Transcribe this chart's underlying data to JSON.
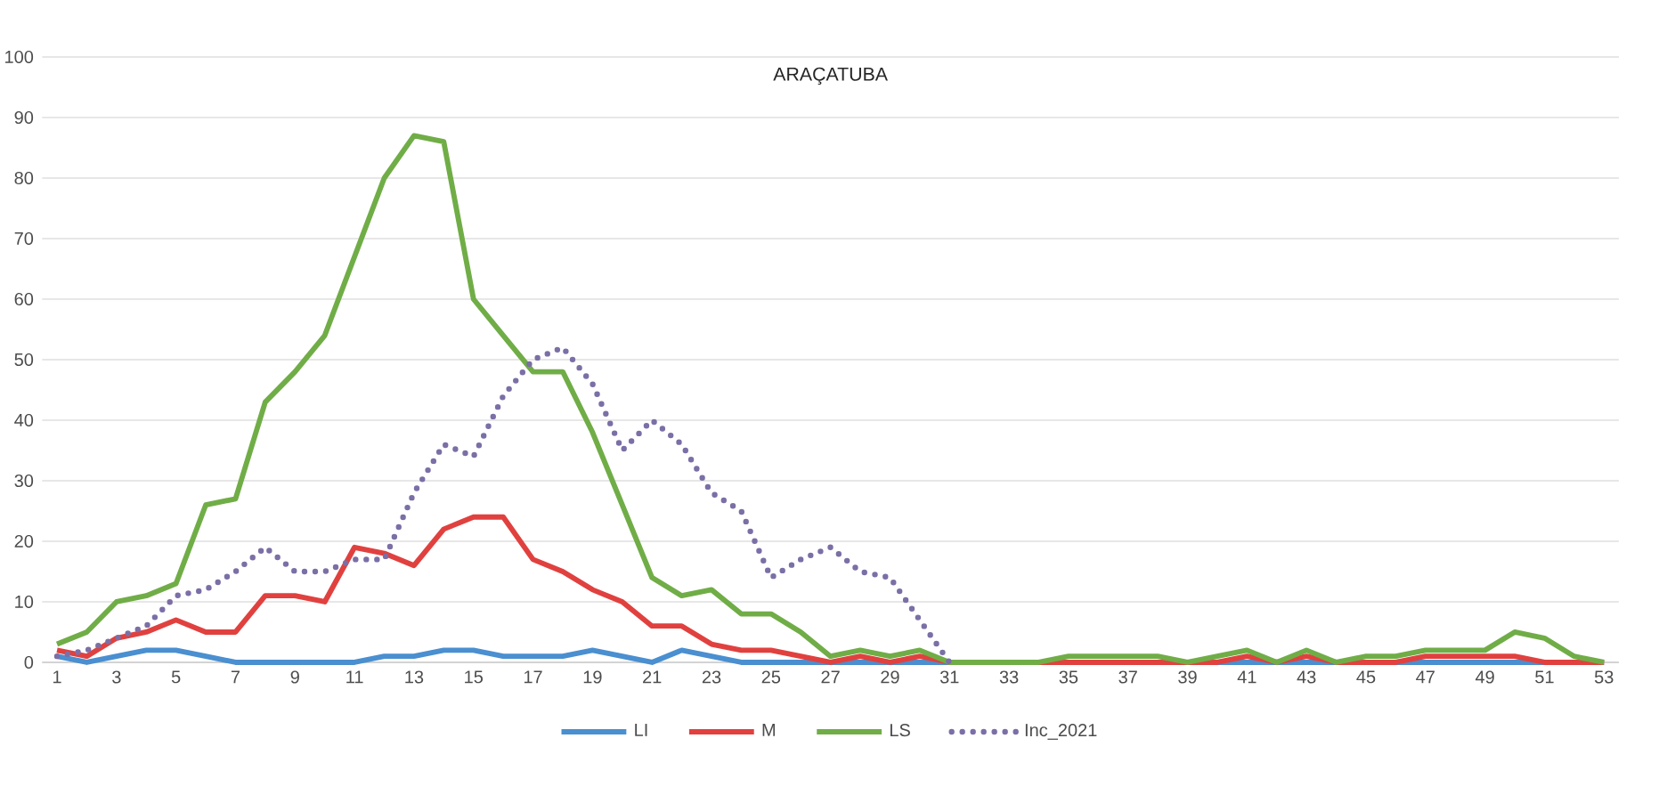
{
  "chart_data": {
    "type": "line",
    "title": "ARAÇATUBA",
    "categories": [
      "1",
      null,
      "3",
      null,
      "5",
      null,
      "7",
      null,
      "9",
      null,
      "11",
      null,
      "13",
      null,
      "15",
      null,
      "17",
      null,
      "19",
      null,
      "21",
      null,
      "23",
      null,
      "25",
      null,
      "27",
      null,
      "29",
      null,
      "31",
      null,
      "33",
      null,
      "35",
      null,
      "37",
      null,
      "39",
      null,
      "41",
      null,
      "43",
      null,
      "45",
      null,
      "47",
      null,
      "49",
      null,
      "51",
      null,
      "53"
    ],
    "series": [
      {
        "name": "LI",
        "color": "#4a8fd0",
        "line_style": "solid",
        "values": [
          1,
          0,
          1,
          2,
          2,
          1,
          0,
          0,
          0,
          0,
          0,
          1,
          1,
          2,
          2,
          1,
          1,
          1,
          2,
          1,
          0,
          2,
          1,
          0,
          0,
          0,
          0,
          0,
          0,
          0,
          0,
          0,
          0,
          0,
          0,
          0,
          0,
          0,
          0,
          0,
          0,
          0,
          0,
          0,
          0,
          0,
          0,
          0,
          0,
          0,
          0,
          0,
          0
        ]
      },
      {
        "name": "M",
        "color": "#e0413f",
        "line_style": "solid",
        "values": [
          2,
          1,
          4,
          5,
          7,
          5,
          5,
          11,
          11,
          10,
          19,
          18,
          16,
          22,
          24,
          24,
          17,
          15,
          12,
          10,
          6,
          6,
          3,
          2,
          2,
          1,
          0,
          1,
          0,
          1,
          0,
          0,
          0,
          0,
          0,
          0,
          0,
          0,
          0,
          0,
          1,
          0,
          1,
          0,
          0,
          0,
          1,
          1,
          1,
          1,
          0,
          0,
          0
        ]
      },
      {
        "name": "LS",
        "color": "#70ad47",
        "line_style": "solid",
        "values": [
          3,
          5,
          10,
          11,
          13,
          26,
          27,
          43,
          48,
          54,
          67,
          80,
          87,
          86,
          60,
          54,
          48,
          48,
          38,
          26,
          14,
          11,
          12,
          8,
          8,
          5,
          1,
          2,
          1,
          2,
          0,
          0,
          0,
          0,
          1,
          1,
          1,
          1,
          0,
          1,
          2,
          0,
          2,
          0,
          1,
          1,
          2,
          2,
          2,
          5,
          4,
          1,
          0
        ]
      },
      {
        "name": "Inc_2021",
        "color": "#7b6fa6",
        "line_style": "dotted",
        "values": [
          1,
          2,
          4,
          6,
          11,
          12,
          15,
          19,
          15,
          15,
          17,
          17,
          28,
          36,
          34,
          44,
          50,
          52,
          46,
          35,
          40,
          36,
          28,
          25,
          14,
          17,
          19,
          15,
          14,
          7,
          0,
          null,
          null,
          null,
          null,
          null,
          null,
          null,
          null,
          null,
          null,
          null,
          null,
          null,
          null,
          null,
          null,
          null,
          null,
          null,
          null,
          null,
          null
        ]
      }
    ],
    "ylim": [
      0,
      100
    ],
    "yticks": [
      0,
      10,
      20,
      30,
      40,
      50,
      60,
      70,
      80,
      90,
      100
    ],
    "grid": "y",
    "legend": "bottom",
    "marker": "none"
  }
}
